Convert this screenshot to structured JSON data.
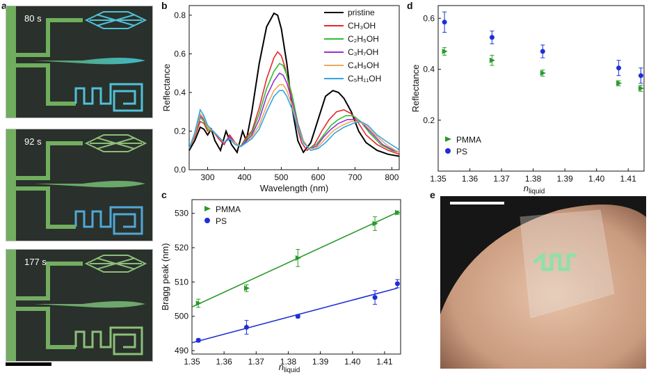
{
  "panels": {
    "a": {
      "letter": "a",
      "times": [
        "80 s",
        "92 s",
        "177 s"
      ]
    },
    "b": {
      "letter": "b",
      "xlabel": "Wavelength (nm)",
      "ylabel": "Reflectance",
      "legend": [
        {
          "label": "pristine",
          "color": "#000000"
        },
        {
          "label": "CH₃OH",
          "color": "#e8262b"
        },
        {
          "label": "C₂H₅OH",
          "color": "#2fbe2f"
        },
        {
          "label": "C₃H₇OH",
          "color": "#9b2fcf"
        },
        {
          "label": "C₄H₉OH",
          "color": "#f2a65a"
        },
        {
          "label": "C₅H₁₁OH",
          "color": "#2ea7e0"
        }
      ]
    },
    "c": {
      "letter": "c"
    },
    "d": {
      "letter": "d"
    },
    "e": {
      "letter": "e"
    }
  },
  "chart_data": [
    {
      "id": "b",
      "type": "line",
      "xlabel": "Wavelength (nm)",
      "ylabel": "Reflectance",
      "xlim": [
        250,
        820
      ],
      "ylim": [
        0,
        0.85
      ],
      "xticks": [
        300,
        400,
        500,
        600,
        700,
        800
      ],
      "yticks": [
        0.0,
        0.2,
        0.4,
        0.6,
        0.8
      ],
      "series": [
        {
          "name": "pristine",
          "color": "#000000",
          "x": [
            250,
            265,
            280,
            290,
            300,
            310,
            320,
            335,
            350,
            365,
            380,
            395,
            405,
            420,
            440,
            460,
            480,
            490,
            500,
            515,
            530,
            545,
            560,
            580,
            600,
            620,
            640,
            655,
            670,
            690,
            710,
            730,
            760,
            790,
            820
          ],
          "y": [
            0.1,
            0.15,
            0.22,
            0.21,
            0.18,
            0.21,
            0.15,
            0.1,
            0.2,
            0.13,
            0.09,
            0.2,
            0.15,
            0.3,
            0.55,
            0.74,
            0.81,
            0.8,
            0.73,
            0.55,
            0.31,
            0.15,
            0.09,
            0.14,
            0.26,
            0.38,
            0.41,
            0.4,
            0.37,
            0.3,
            0.2,
            0.14,
            0.1,
            0.08,
            0.07
          ]
        },
        {
          "name": "CH₃OH",
          "color": "#e8262b",
          "x": [
            250,
            265,
            280,
            290,
            300,
            315,
            330,
            345,
            360,
            375,
            390,
            405,
            420,
            440,
            460,
            480,
            490,
            500,
            510,
            525,
            540,
            555,
            570,
            590,
            610,
            630,
            650,
            670,
            690,
            710,
            730,
            760,
            790,
            820
          ],
          "y": [
            0.11,
            0.17,
            0.25,
            0.24,
            0.2,
            0.2,
            0.16,
            0.13,
            0.18,
            0.14,
            0.12,
            0.17,
            0.2,
            0.32,
            0.47,
            0.58,
            0.61,
            0.59,
            0.53,
            0.4,
            0.24,
            0.14,
            0.1,
            0.13,
            0.2,
            0.26,
            0.3,
            0.31,
            0.29,
            0.24,
            0.18,
            0.13,
            0.1,
            0.08
          ]
        },
        {
          "name": "C₂H₅OH",
          "color": "#2fbe2f",
          "x": [
            250,
            265,
            280,
            290,
            300,
            315,
            330,
            345,
            360,
            375,
            390,
            405,
            420,
            440,
            460,
            480,
            495,
            505,
            515,
            530,
            545,
            560,
            575,
            595,
            615,
            635,
            655,
            675,
            695,
            715,
            740,
            770,
            800,
            820
          ],
          "y": [
            0.11,
            0.18,
            0.27,
            0.25,
            0.21,
            0.2,
            0.17,
            0.14,
            0.17,
            0.14,
            0.12,
            0.16,
            0.19,
            0.29,
            0.42,
            0.51,
            0.55,
            0.54,
            0.49,
            0.38,
            0.24,
            0.15,
            0.11,
            0.13,
            0.18,
            0.23,
            0.26,
            0.28,
            0.28,
            0.25,
            0.19,
            0.13,
            0.1,
            0.09
          ]
        },
        {
          "name": "C₃H₇OH",
          "color": "#9b2fcf",
          "x": [
            250,
            265,
            280,
            290,
            300,
            315,
            330,
            345,
            360,
            375,
            390,
            405,
            420,
            440,
            460,
            480,
            495,
            505,
            515,
            530,
            545,
            560,
            575,
            595,
            615,
            635,
            655,
            680,
            700,
            720,
            745,
            775,
            805,
            820
          ],
          "y": [
            0.11,
            0.18,
            0.28,
            0.26,
            0.22,
            0.2,
            0.17,
            0.14,
            0.17,
            0.14,
            0.12,
            0.15,
            0.18,
            0.26,
            0.38,
            0.46,
            0.5,
            0.49,
            0.45,
            0.35,
            0.23,
            0.15,
            0.11,
            0.12,
            0.17,
            0.21,
            0.24,
            0.26,
            0.26,
            0.24,
            0.19,
            0.13,
            0.1,
            0.09
          ]
        },
        {
          "name": "C₄H₉OH",
          "color": "#f2a65a",
          "x": [
            250,
            265,
            280,
            290,
            300,
            315,
            330,
            345,
            360,
            375,
            390,
            405,
            420,
            440,
            460,
            480,
            495,
            505,
            515,
            530,
            545,
            560,
            575,
            595,
            615,
            640,
            665,
            690,
            710,
            730,
            755,
            785,
            810,
            820
          ],
          "y": [
            0.11,
            0.18,
            0.29,
            0.27,
            0.22,
            0.2,
            0.17,
            0.14,
            0.16,
            0.14,
            0.12,
            0.14,
            0.17,
            0.23,
            0.33,
            0.41,
            0.44,
            0.44,
            0.41,
            0.33,
            0.22,
            0.15,
            0.11,
            0.11,
            0.15,
            0.2,
            0.23,
            0.25,
            0.25,
            0.23,
            0.18,
            0.13,
            0.1,
            0.09
          ]
        },
        {
          "name": "C₅H₁₁OH",
          "color": "#2ea7e0",
          "x": [
            250,
            265,
            280,
            290,
            300,
            315,
            330,
            345,
            360,
            375,
            390,
            405,
            420,
            440,
            460,
            480,
            495,
            505,
            515,
            530,
            545,
            560,
            580,
            600,
            620,
            645,
            670,
            695,
            715,
            735,
            760,
            790,
            815,
            820
          ],
          "y": [
            0.11,
            0.19,
            0.31,
            0.28,
            0.23,
            0.2,
            0.17,
            0.14,
            0.16,
            0.13,
            0.12,
            0.14,
            0.16,
            0.21,
            0.3,
            0.38,
            0.41,
            0.41,
            0.38,
            0.31,
            0.21,
            0.14,
            0.1,
            0.11,
            0.14,
            0.19,
            0.22,
            0.24,
            0.25,
            0.23,
            0.18,
            0.14,
            0.11,
            0.1
          ]
        }
      ]
    },
    {
      "id": "c",
      "type": "scatter",
      "xlabel": "n_liquid",
      "ylabel": "Bragg peak (nm)",
      "xlim": [
        1.35,
        1.415
      ],
      "ylim": [
        489,
        534
      ],
      "xticks": [
        1.35,
        1.36,
        1.37,
        1.38,
        1.39,
        1.4,
        1.41
      ],
      "yticks": [
        490,
        500,
        510,
        520,
        530
      ],
      "series": [
        {
          "name": "PMMA",
          "color": "#2a9a2a",
          "marker": "triangle",
          "x": [
            1.352,
            1.367,
            1.383,
            1.407,
            1.414
          ],
          "y": [
            503.8,
            508.2,
            517.0,
            527.0,
            530.2
          ],
          "err": [
            1.2,
            1.0,
            2.5,
            2.0,
            0.5
          ],
          "fit": [
            [
              1.35,
              502.7
            ],
            [
              1.414,
              530.3
            ]
          ]
        },
        {
          "name": "PS",
          "color": "#1f2fd6",
          "marker": "circle",
          "x": [
            1.352,
            1.367,
            1.383,
            1.407,
            1.414
          ],
          "y": [
            493.0,
            496.8,
            500.0,
            505.5,
            509.5
          ],
          "err": [
            0.5,
            2.0,
            0.5,
            2.0,
            1.2
          ],
          "fit": [
            [
              1.35,
              492.3
            ],
            [
              1.414,
              508.2
            ]
          ]
        }
      ]
    },
    {
      "id": "d",
      "type": "scatter",
      "xlabel": "n_liquid",
      "ylabel": "Reflectance",
      "xlim": [
        1.35,
        1.415
      ],
      "ylim": [
        0.0,
        0.65
      ],
      "xticks": [
        1.35,
        1.36,
        1.37,
        1.38,
        1.39,
        1.4,
        1.41
      ],
      "yticks": [
        0.2,
        0.4,
        0.6
      ],
      "series": [
        {
          "name": "PMMA",
          "color": "#2a9a2a",
          "marker": "triangle",
          "x": [
            1.352,
            1.367,
            1.383,
            1.407,
            1.414
          ],
          "y": [
            0.47,
            0.435,
            0.385,
            0.345,
            0.325
          ],
          "err": [
            0.015,
            0.02,
            0.012,
            0.01,
            0.012
          ]
        },
        {
          "name": "PS",
          "color": "#1f2fd6",
          "marker": "circle",
          "x": [
            1.352,
            1.367,
            1.383,
            1.407,
            1.414
          ],
          "y": [
            0.585,
            0.525,
            0.47,
            0.405,
            0.375
          ],
          "err": [
            0.04,
            0.025,
            0.025,
            0.03,
            0.03
          ]
        }
      ]
    }
  ]
}
